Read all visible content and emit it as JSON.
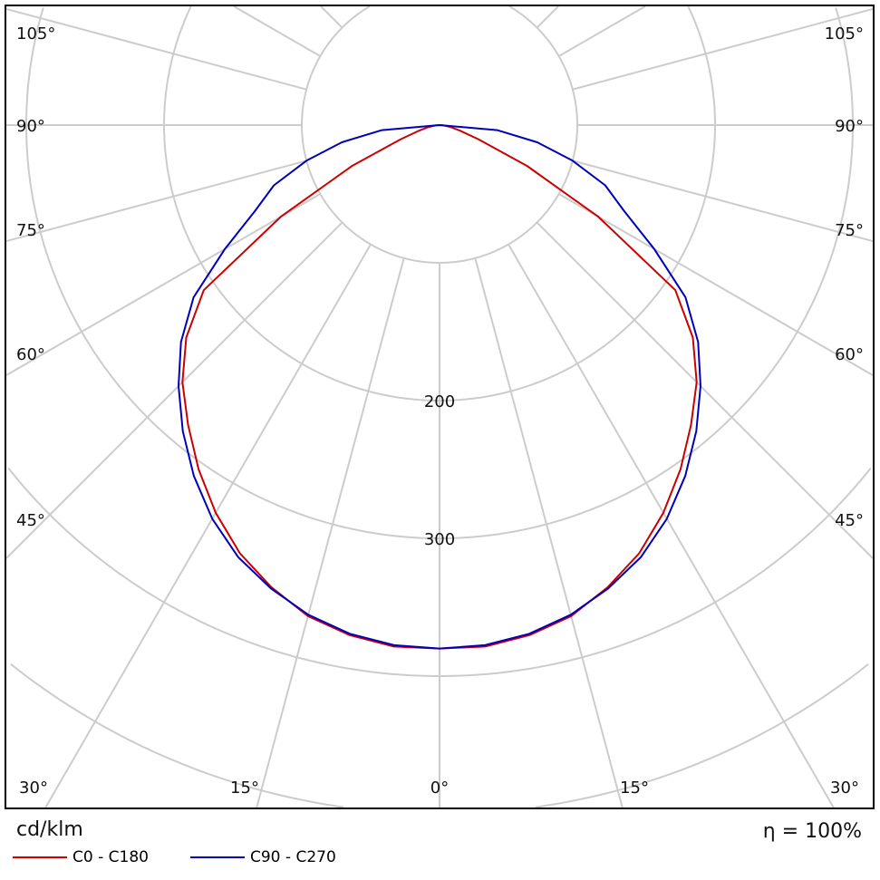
{
  "chart_data": {
    "type": "polar",
    "unit_label": "cd/klm",
    "efficiency_label": "η = 100%",
    "radial_ticks": [
      100,
      200,
      300,
      400,
      500
    ],
    "radial_tick_labels_shown": [
      "200",
      "300"
    ],
    "angle_labels": [
      {
        "angle": 105,
        "text": "105°"
      },
      {
        "angle": 90,
        "text": "90°"
      },
      {
        "angle": 75,
        "text": "75°"
      },
      {
        "angle": 60,
        "text": "60°"
      },
      {
        "angle": 45,
        "text": "45°"
      },
      {
        "angle": 30,
        "text": "30°"
      },
      {
        "angle": 15,
        "text": "15°"
      },
      {
        "angle": 0,
        "text": "0°"
      }
    ],
    "grid": true,
    "angles": [
      0,
      5,
      10,
      15,
      20,
      25,
      30,
      35,
      40,
      45,
      50,
      55,
      60,
      65,
      70,
      75,
      80,
      85,
      90
    ],
    "series": [
      {
        "name": "C0 - C180",
        "color": "#cc0000",
        "values": [
          380,
          380,
          376,
          369,
          357,
          343,
          325,
          305,
          284,
          264,
          240,
          209,
          133,
          70,
          30,
          15,
          8,
          3,
          0
        ]
      },
      {
        "name": "C90 - C270",
        "color": "#0000bb",
        "values": [
          380,
          379,
          375,
          368,
          358,
          346,
          330,
          311,
          290,
          268,
          245,
          218,
          180,
          148,
          128,
          100,
          72,
          42,
          0
        ]
      }
    ]
  }
}
